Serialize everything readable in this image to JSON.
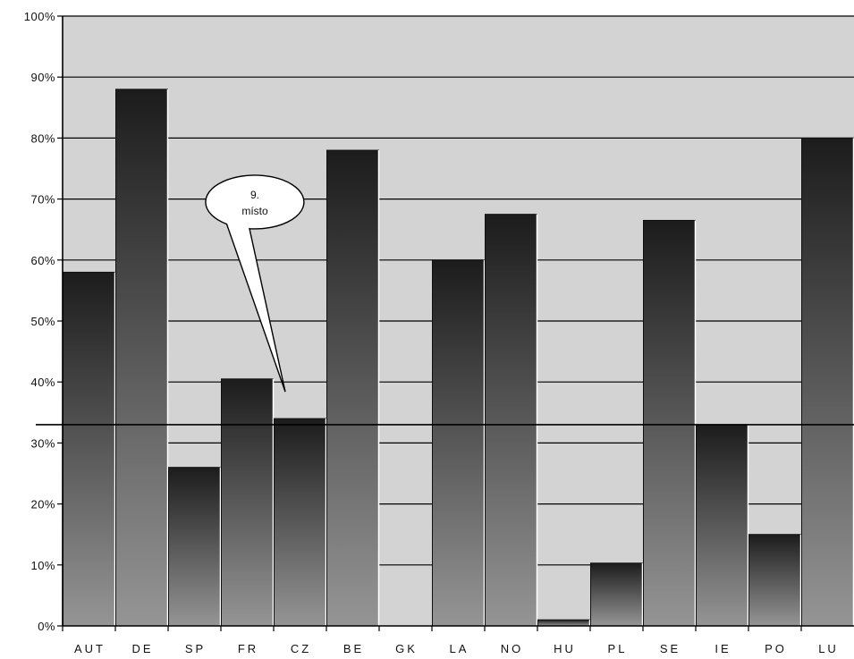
{
  "chart_data": {
    "type": "bar",
    "categories": [
      "AUT",
      "DE",
      "SP",
      "FR",
      "CZ",
      "BE",
      "GK",
      "LA",
      "NO",
      "HU",
      "PL",
      "SE",
      "IE",
      "PO",
      "LU"
    ],
    "values": [
      58,
      88,
      26,
      40.5,
      34,
      78,
      0,
      60,
      67.5,
      1,
      10.3,
      66.5,
      33,
      15,
      80
    ],
    "ylim": [
      0,
      100
    ],
    "yticks": [
      "0%",
      "10%",
      "20%",
      "30%",
      "40%",
      "50%",
      "60%",
      "70%",
      "80%",
      "90%",
      "100%"
    ],
    "reference_line": 33,
    "grid": true,
    "legend": "none",
    "annotation": {
      "target": "CZ",
      "line1": "9.",
      "line2": "místo"
    },
    "colors": {
      "plot_bg": "#d3d3d3",
      "bar_top": "#1c1c1c",
      "bar_bottom": "#959595",
      "grid": "#000000"
    }
  }
}
